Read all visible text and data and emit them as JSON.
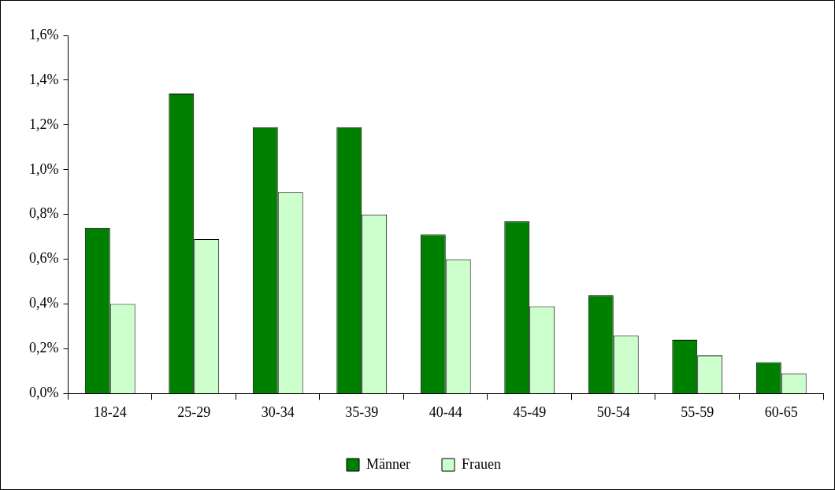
{
  "chart_data": {
    "type": "bar",
    "categories": [
      "18-24",
      "25-29",
      "30-34",
      "35-39",
      "40-44",
      "45-49",
      "50-54",
      "55-59",
      "60-65"
    ],
    "series": [
      {
        "name": "Männer",
        "color": "#008000",
        "values": [
          0.74,
          1.34,
          1.19,
          1.19,
          0.71,
          0.77,
          0.44,
          0.24,
          0.14
        ]
      },
      {
        "name": "Frauen",
        "color": "#ccffcc",
        "values": [
          0.4,
          0.69,
          0.9,
          0.8,
          0.6,
          0.39,
          0.26,
          0.17,
          0.09
        ]
      }
    ],
    "ylim": [
      0,
      1.6
    ],
    "yticks": [
      {
        "value": 0,
        "label": "0,0%"
      },
      {
        "value": 0.2,
        "label": "0,2%"
      },
      {
        "value": 0.4,
        "label": "0,4%"
      },
      {
        "value": 0.6,
        "label": "0,6%"
      },
      {
        "value": 0.8,
        "label": "0,8%"
      },
      {
        "value": 1.0,
        "label": "1,0%"
      },
      {
        "value": 1.2,
        "label": "1,2%"
      },
      {
        "value": 1.4,
        "label": "1,4%"
      },
      {
        "value": 1.6,
        "label": "1,6%"
      }
    ],
    "grid": false,
    "legend": "bottom"
  }
}
